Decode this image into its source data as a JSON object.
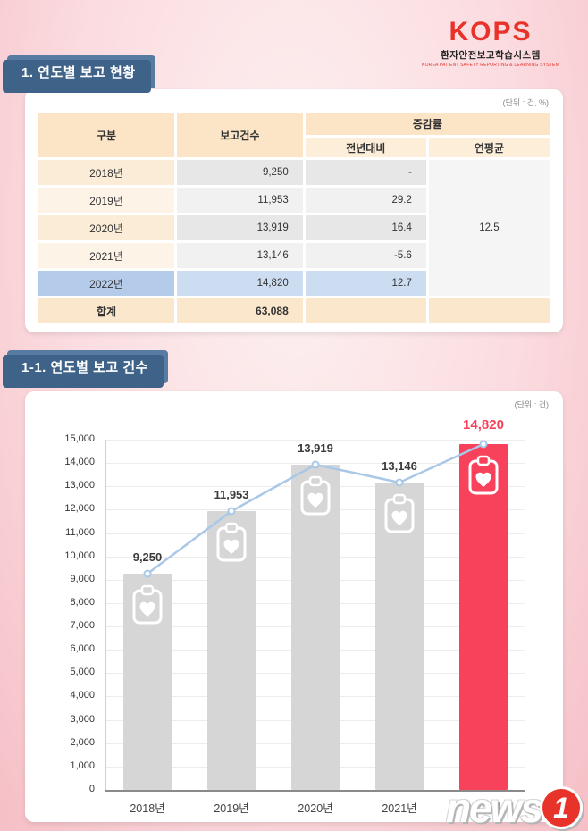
{
  "logo": {
    "brand": "KOPS",
    "name_kr": "환자안전보고학습시스템",
    "name_en": "KOREA PATIENT SAFETY REPORTING & LEARNING SYSTEM"
  },
  "section_report_status": {
    "title": "1. 연도별 보고 현황",
    "unit_label": "(단위 : 건, %)",
    "table": {
      "col_category": "구분",
      "col_count": "보고건수",
      "col_rate_group": "증감률",
      "col_yoy": "전년대비",
      "col_avg": "연평균",
      "rows": [
        {
          "year": "2018년",
          "count": "9,250",
          "yoy": "-"
        },
        {
          "year": "2019년",
          "count": "11,953",
          "yoy": "29.2"
        },
        {
          "year": "2020년",
          "count": "13,919",
          "yoy": "16.4"
        },
        {
          "year": "2021년",
          "count": "13,146",
          "yoy": "-5.6"
        },
        {
          "year": "2022년",
          "count": "14,820",
          "yoy": "12.7"
        }
      ],
      "annual_average": "12.5",
      "total_label": "합계",
      "total_count": "63,088"
    }
  },
  "section_report_chart": {
    "title": "1-1. 연도별 보고 건수",
    "unit_label": "(단위 : 건)"
  },
  "chart_data": {
    "type": "bar",
    "title": "1-1. 연도별 보고 건수",
    "categories": [
      "2018년",
      "2019년",
      "2020년",
      "2021년",
      "2022년"
    ],
    "values": [
      9250,
      11953,
      13919,
      13146,
      14820
    ],
    "value_labels": [
      "9,250",
      "11,953",
      "13,919",
      "13,146",
      "14,820"
    ],
    "ylim": [
      0,
      15000
    ],
    "ytick_step": 1000,
    "highlight_index": 4,
    "overlay_line": true,
    "grid": true,
    "legend": "none",
    "colors": {
      "bar": "#d6d6d6",
      "highlight": "#f8415a",
      "line": "#a9c8e8",
      "label": "#3a3a3a",
      "highlight_label": "#f8415a"
    }
  },
  "watermark": {
    "text_main": "news",
    "text_digit": "1"
  },
  "theme": {
    "header_bg": "#567ca3",
    "header_shadow": "#3e6288",
    "accent_red": "#e8332a",
    "table_peach": "#fbe5c6",
    "highlight_blue": "#b4cce9",
    "chart_highlight": "#f8415a"
  }
}
